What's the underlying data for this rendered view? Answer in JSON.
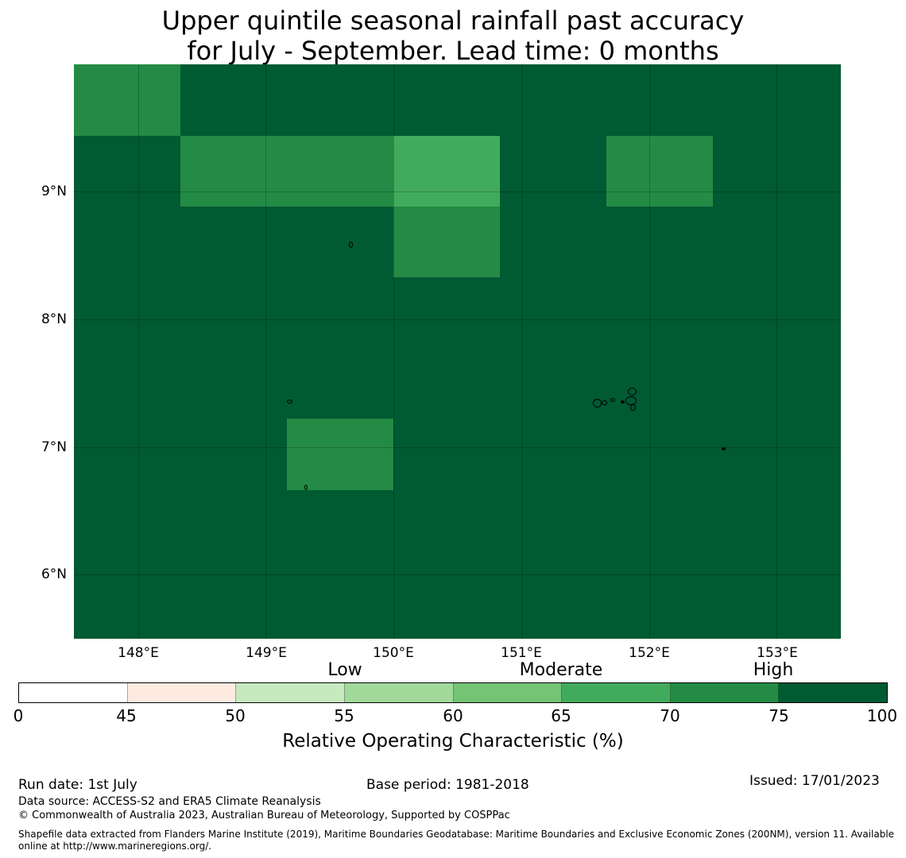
{
  "title": {
    "line1": "Upper quintile seasonal rainfall past accuracy",
    "line2": "for July - September. Lead time: 0 months"
  },
  "map": {
    "background_color": "#005a32",
    "lon_labels": [
      "148°E",
      "149°E",
      "150°E",
      "151°E",
      "152°E",
      "153°E"
    ],
    "lat_labels": [
      "9°N",
      "8°N",
      "7°N",
      "6°N"
    ],
    "category_labels": {
      "low": "Low",
      "moderate": "Moderate",
      "high": "High"
    }
  },
  "colorbar": {
    "ticks": [
      "0",
      "45",
      "50",
      "55",
      "60",
      "65",
      "70",
      "75",
      "100"
    ],
    "colors": [
      "#ffffff",
      "#feeae0",
      "#c7e9c0",
      "#a1d99b",
      "#74c476",
      "#41ab5d",
      "#238b45",
      "#005a32"
    ],
    "label": "Relative Operating Characteristic (%)"
  },
  "footer": {
    "run_date": "Run date: 1st July",
    "base_period": "Base period: 1981-2018",
    "issued": "Issued: 17/01/2023",
    "data_source": "Data source: ACCESS-S2 and ERA5 Climate Reanalysis",
    "copyright": "© Commonwealth of Australia 2023, Australian Bureau of Meteorology, Supported by COSPPac",
    "shapefile_line1": "Shapefile data extracted from Flanders Marine Institute (2019), Maritime Boundaries Geodatabase: Maritime Boundaries and Exclusive Economic Zones (200NM), version 11. Available",
    "shapefile_line2": "online at http://www.marineregions.org/."
  }
}
